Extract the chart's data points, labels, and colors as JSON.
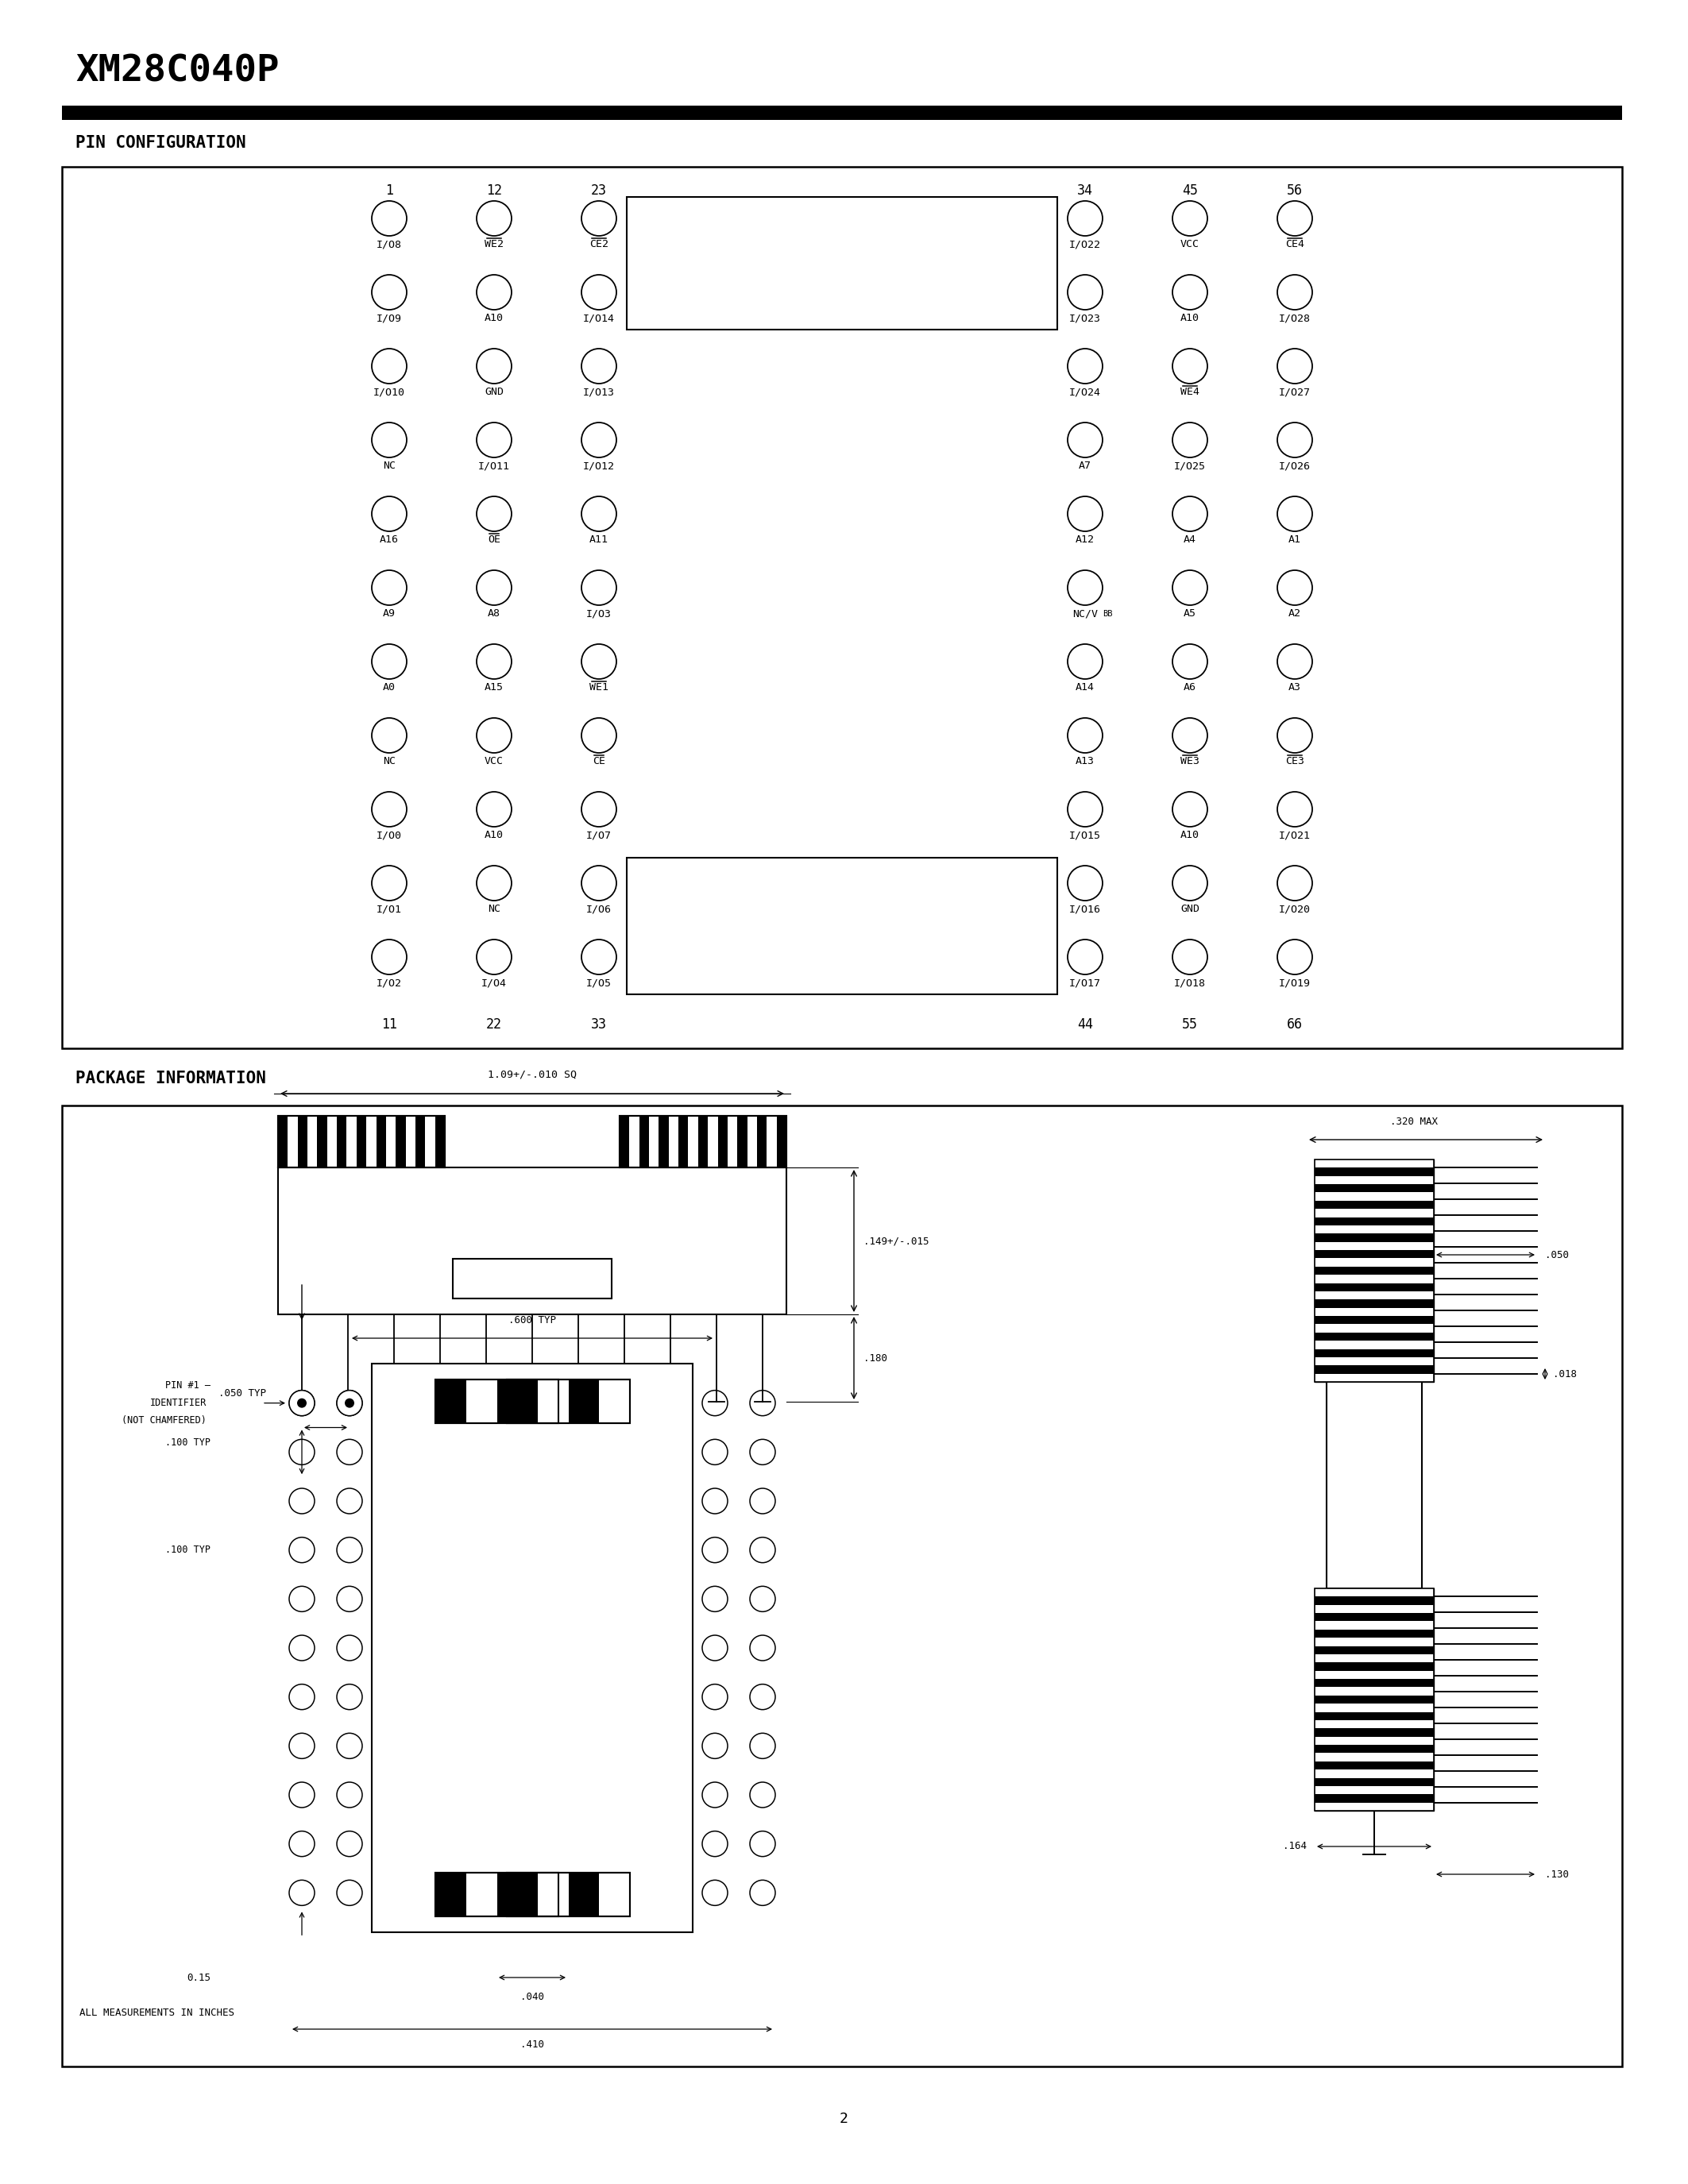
{
  "page_title": "XM28C040P",
  "page_number": "2",
  "section1_title": "PIN CONFIGURATION",
  "section2_title": "PACKAGE INFORMATION",
  "bg_color": "#ffffff",
  "left_pins": [
    [
      "I/O8",
      "WE2",
      "CE2"
    ],
    [
      "I/O9",
      "A10",
      "I/O14"
    ],
    [
      "I/O10",
      "GND",
      "I/O13"
    ],
    [
      "NC",
      "I/O11",
      "I/O12"
    ],
    [
      "A16",
      "OE",
      "A11"
    ],
    [
      "A9",
      "A8",
      "I/O3"
    ],
    [
      "A0",
      "A15",
      "WE1"
    ],
    [
      "NC",
      "VCC",
      "CE"
    ],
    [
      "I/O0",
      "A10",
      "I/O7"
    ],
    [
      "I/O1",
      "NC",
      "I/O6"
    ],
    [
      "I/O2",
      "I/O4",
      "I/O5"
    ]
  ],
  "right_pins": [
    [
      "I/O22",
      "VCC",
      "CE4"
    ],
    [
      "I/O23",
      "A10",
      "I/O28"
    ],
    [
      "I/O24",
      "WE4",
      "I/O27"
    ],
    [
      "A7",
      "I/O25",
      "I/O26"
    ],
    [
      "A12",
      "A4",
      "A1"
    ],
    [
      "NC/VBB",
      "A5",
      "A2"
    ],
    [
      "A14",
      "A6",
      "A3"
    ],
    [
      "A13",
      "WE3",
      "CE3"
    ],
    [
      "I/O15",
      "A10",
      "I/O21"
    ],
    [
      "I/O16",
      "GND",
      "I/O20"
    ],
    [
      "I/O17",
      "I/O18",
      "I/O19"
    ]
  ],
  "overbar_pins": [
    "CE2",
    "CE4",
    "CE",
    "CE3",
    "WE1",
    "WE2",
    "WE3",
    "WE4",
    "OE"
  ],
  "ncvbb_label": "NC/V",
  "ncvbb_sub": "BB"
}
